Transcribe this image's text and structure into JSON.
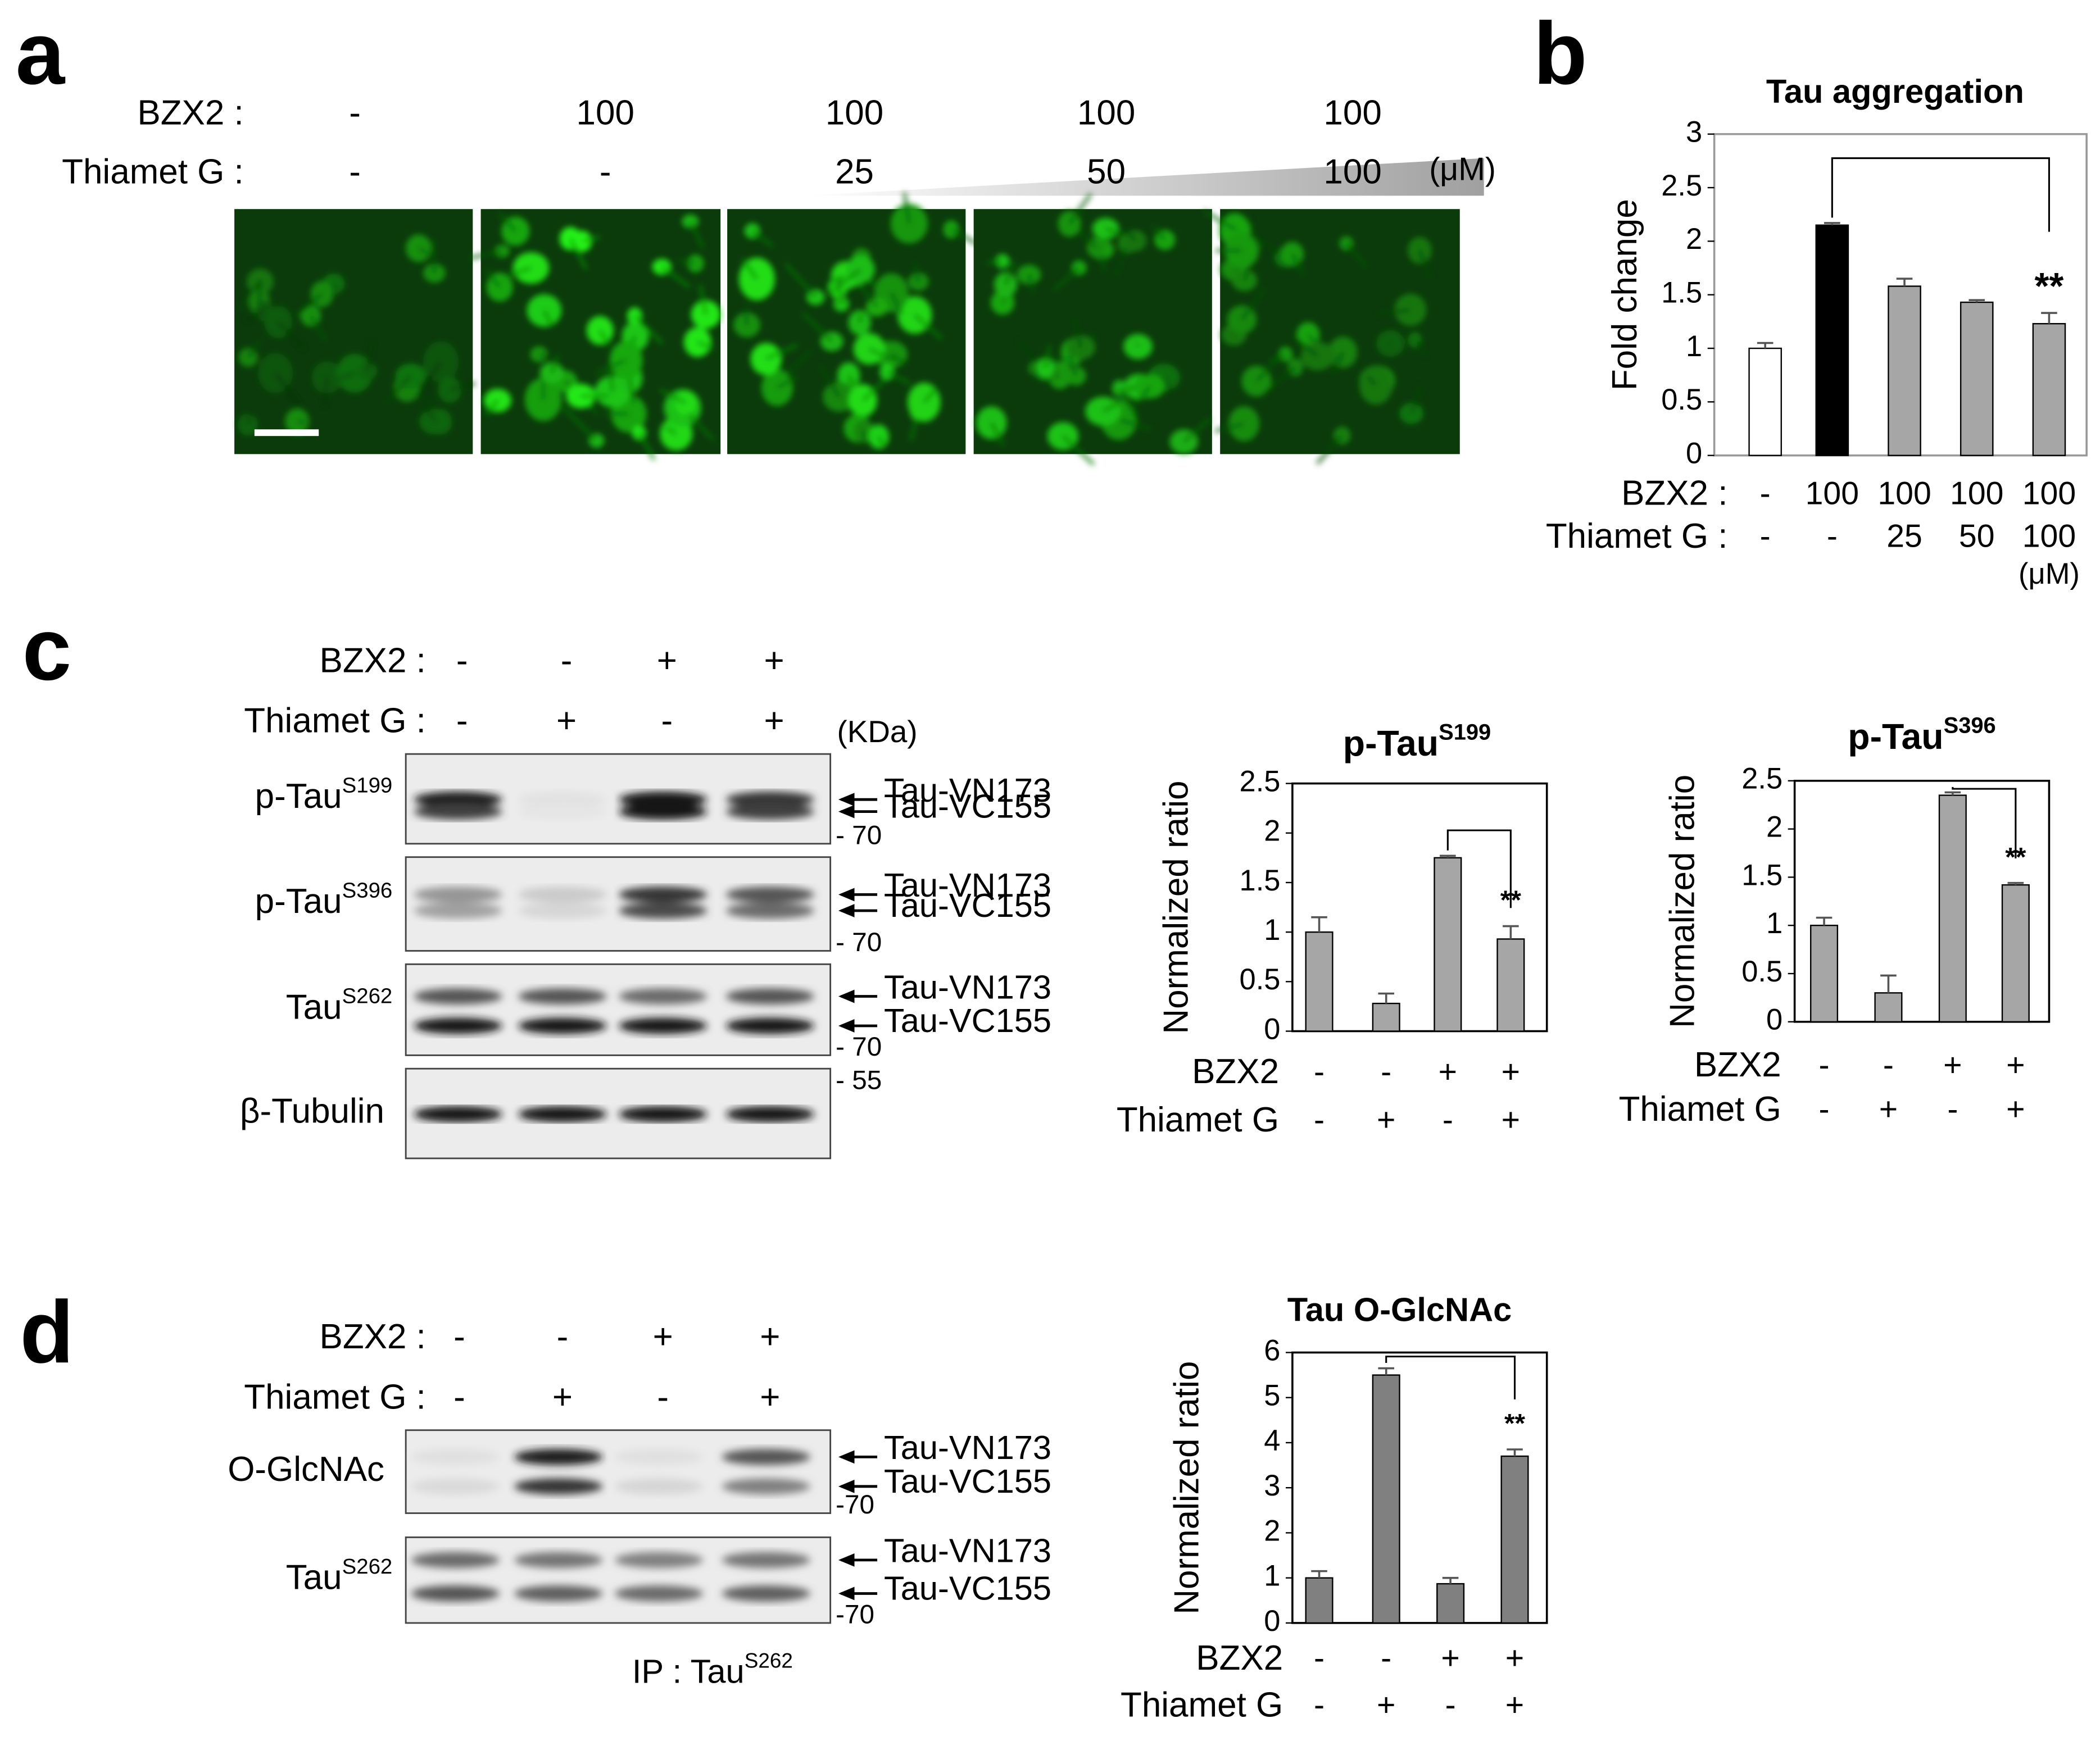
{
  "panels": {
    "a": {
      "letter": "a",
      "rows": [
        {
          "label": "BZX2 :",
          "values": [
            "-",
            "100",
            "100",
            "100",
            "100"
          ]
        },
        {
          "label": "Thiamet G :",
          "values": [
            "-",
            "-",
            "25",
            "50",
            "100"
          ]
        }
      ],
      "unit": "(μM)"
    },
    "b": {
      "letter": "b"
    },
    "c": {
      "letter": "c",
      "rows": [
        {
          "label": "BZX2 :",
          "values": [
            "-",
            "-",
            "+",
            "+"
          ]
        },
        {
          "label": "Thiamet G :",
          "values": [
            "-",
            "+",
            "-",
            "+"
          ]
        }
      ],
      "unit": "(KDa)",
      "blots": [
        {
          "label": "p-Tau",
          "sup": "S199",
          "bands": [
            "Tau-VN173",
            "Tau-VC155"
          ],
          "marker": "- 70"
        },
        {
          "label": "p-Tau",
          "sup": "S396",
          "bands": [
            "Tau-VN173",
            "Tau-VC155"
          ],
          "marker": "- 70"
        },
        {
          "label": "Tau",
          "sup": "S262",
          "bands": [
            "Tau-VN173",
            "Tau-VC155"
          ],
          "marker": "- 70"
        },
        {
          "label": "β-Tubulin",
          "marker": "- 55"
        }
      ]
    },
    "d": {
      "letter": "d",
      "rows": [
        {
          "label": "BZX2 :",
          "values": [
            "-",
            "-",
            "+",
            "+"
          ]
        },
        {
          "label": "Thiamet G :",
          "values": [
            "-",
            "+",
            "-",
            "+"
          ]
        }
      ],
      "blots": [
        {
          "label": "O-GlcNAc",
          "bands": [
            "Tau-VN173",
            "Tau-VC155"
          ],
          "marker": "-70"
        },
        {
          "label": "Tau",
          "sup": "S262",
          "bands": [
            "Tau-VN173",
            "Tau-VC155"
          ],
          "marker": "-70"
        }
      ],
      "caption": "IP : Tau",
      "caption_sup": "S262"
    }
  },
  "chart_data": [
    {
      "type": "bar",
      "title": "Tau aggregation",
      "y_label": "Fold change",
      "ylim": [
        0,
        3
      ],
      "yticks": [
        0,
        0.5,
        1,
        1.5,
        2,
        2.5,
        3
      ],
      "values": [
        1.0,
        2.15,
        1.58,
        1.43,
        1.23
      ],
      "errors": [
        0.05,
        0.02,
        0.07,
        0.02,
        0.1
      ],
      "colors": [
        "#ffffff",
        "#000000",
        "#a6a6a6",
        "#a6a6a6",
        "#a6a6a6"
      ],
      "condition_rows": [
        {
          "label": "BZX2 :",
          "values": [
            "-",
            "100",
            "100",
            "100",
            "100"
          ]
        },
        {
          "label": "Thiamet G :",
          "values": [
            "-",
            "-",
            "25",
            "50",
            "100"
          ]
        }
      ],
      "unit": "(μM)",
      "annotation": "**"
    },
    {
      "type": "bar",
      "title": "p-Tau",
      "title_sup": "S199",
      "y_label": "Normalized ratio",
      "ylim": [
        0,
        2.5
      ],
      "yticks": [
        0,
        0.5,
        1,
        1.5,
        2,
        2.5
      ],
      "values": [
        1.0,
        0.28,
        1.75,
        0.93
      ],
      "errors": [
        0.15,
        0.1,
        0.02,
        0.13
      ],
      "colors": [
        "#a6a6a6",
        "#a6a6a6",
        "#a6a6a6",
        "#a6a6a6"
      ],
      "condition_rows": [
        {
          "label": "BZX2",
          "values": [
            "-",
            "-",
            "+",
            "+"
          ]
        },
        {
          "label": "Thiamet G",
          "values": [
            "-",
            "+",
            "-",
            "+"
          ]
        }
      ],
      "annotation": "**"
    },
    {
      "type": "bar",
      "title": "p-Tau",
      "title_sup": "S396",
      "y_label": "Normalized ratio",
      "ylim": [
        0,
        2.5
      ],
      "yticks": [
        0,
        0.5,
        1,
        1.5,
        2,
        2.5
      ],
      "values": [
        1.0,
        0.3,
        2.35,
        1.42
      ],
      "errors": [
        0.08,
        0.18,
        0.03,
        0.02
      ],
      "colors": [
        "#a6a6a6",
        "#a6a6a6",
        "#a6a6a6",
        "#a6a6a6"
      ],
      "condition_rows": [
        {
          "label": "BZX2",
          "values": [
            "-",
            "-",
            "+",
            "+"
          ]
        },
        {
          "label": "Thiamet G",
          "values": [
            "-",
            "+",
            "-",
            "+"
          ]
        }
      ],
      "annotation": "**"
    },
    {
      "type": "bar",
      "title": "Tau O-GlcNAc",
      "y_label": "Normalized ratio",
      "ylim": [
        0,
        6
      ],
      "yticks": [
        0,
        1,
        2,
        3,
        4,
        5,
        6
      ],
      "values": [
        1.0,
        5.5,
        0.87,
        3.7
      ],
      "errors": [
        0.15,
        0.15,
        0.13,
        0.15
      ],
      "colors": [
        "#808080",
        "#808080",
        "#808080",
        "#808080"
      ],
      "condition_rows": [
        {
          "label": "BZX2",
          "values": [
            "-",
            "-",
            "+",
            "+"
          ]
        },
        {
          "label": "Thiamet G",
          "values": [
            "-",
            "+",
            "-",
            "+"
          ]
        }
      ],
      "annotation": "**"
    }
  ]
}
